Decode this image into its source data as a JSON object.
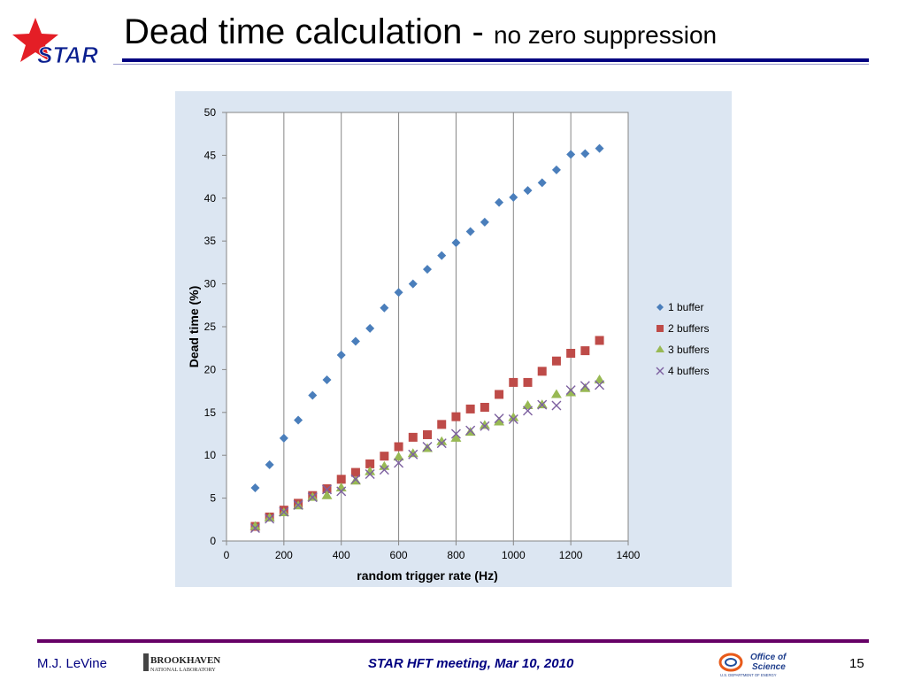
{
  "header": {
    "logo_text": "STAR",
    "title_main": "Dead time calculation - ",
    "title_sub": "no zero suppression"
  },
  "footer": {
    "author": "M.J. LeVine",
    "lab_logo_line1": "BROOKHAVEN",
    "lab_logo_line2": "NATIONAL LABORATORY",
    "meeting": "STAR HFT meeting, Mar 10, 2010",
    "doe_logo_line1": "Office of",
    "doe_logo_line2": "Science",
    "doe_logo_line3": "U.S. DEPARTMENT OF ENERGY",
    "page": "15"
  },
  "colors": {
    "chart_background": "#dce6f2",
    "series_1": "#4a7ebb",
    "series_2": "#be4b48",
    "series_3": "#98b954",
    "series_4": "#7d60a0",
    "title_rule": "#000080",
    "footer_rule": "#660066"
  },
  "chart_data": {
    "type": "scatter",
    "title": "",
    "xlabel": "random trigger rate (Hz)",
    "ylabel": "Dead time (%)",
    "xlim": [
      0,
      1400
    ],
    "ylim": [
      0,
      50
    ],
    "xticks": [
      0,
      200,
      400,
      600,
      800,
      1000,
      1200,
      1400
    ],
    "yticks": [
      0,
      5,
      10,
      15,
      20,
      25,
      30,
      35,
      40,
      45,
      50
    ],
    "grid": "vertical major",
    "legend_position": "right",
    "series": [
      {
        "name": "1 buffer",
        "marker": "diamond",
        "points": [
          [
            100,
            6.2
          ],
          [
            150,
            8.9
          ],
          [
            200,
            12.0
          ],
          [
            250,
            14.1
          ],
          [
            300,
            17.0
          ],
          [
            350,
            18.8
          ],
          [
            400,
            21.7
          ],
          [
            450,
            23.3
          ],
          [
            500,
            24.8
          ],
          [
            550,
            27.2
          ],
          [
            600,
            29.0
          ],
          [
            650,
            30.0
          ],
          [
            700,
            31.7
          ],
          [
            750,
            33.3
          ],
          [
            800,
            34.8
          ],
          [
            850,
            36.1
          ],
          [
            900,
            37.2
          ],
          [
            950,
            39.5
          ],
          [
            1000,
            40.1
          ],
          [
            1050,
            40.9
          ],
          [
            1100,
            41.8
          ],
          [
            1150,
            43.3
          ],
          [
            1200,
            45.1
          ],
          [
            1250,
            45.2
          ],
          [
            1300,
            45.8
          ]
        ]
      },
      {
        "name": "2 buffers",
        "marker": "square",
        "points": [
          [
            100,
            1.7
          ],
          [
            150,
            2.8
          ],
          [
            200,
            3.6
          ],
          [
            250,
            4.4
          ],
          [
            300,
            5.3
          ],
          [
            350,
            6.1
          ],
          [
            400,
            7.2
          ],
          [
            450,
            8.0
          ],
          [
            500,
            9.0
          ],
          [
            550,
            9.9
          ],
          [
            600,
            11.0
          ],
          [
            650,
            12.1
          ],
          [
            700,
            12.4
          ],
          [
            750,
            13.6
          ],
          [
            800,
            14.5
          ],
          [
            850,
            15.4
          ],
          [
            900,
            15.6
          ],
          [
            950,
            17.1
          ],
          [
            1000,
            18.5
          ],
          [
            1050,
            18.5
          ],
          [
            1100,
            19.8
          ],
          [
            1150,
            21.0
          ],
          [
            1200,
            21.9
          ],
          [
            1250,
            22.2
          ],
          [
            1300,
            23.4
          ]
        ]
      },
      {
        "name": "3 buffers",
        "marker": "triangle",
        "points": [
          [
            100,
            1.7
          ],
          [
            150,
            2.7
          ],
          [
            200,
            3.3
          ],
          [
            250,
            4.1
          ],
          [
            300,
            5.1
          ],
          [
            350,
            5.3
          ],
          [
            400,
            6.2
          ],
          [
            450,
            7.0
          ],
          [
            500,
            8.1
          ],
          [
            550,
            8.7
          ],
          [
            600,
            9.8
          ],
          [
            650,
            10.2
          ],
          [
            700,
            10.8
          ],
          [
            750,
            11.6
          ],
          [
            800,
            12.0
          ],
          [
            850,
            12.7
          ],
          [
            900,
            13.5
          ],
          [
            950,
            13.9
          ],
          [
            1000,
            14.4
          ],
          [
            1050,
            15.8
          ],
          [
            1100,
            15.9
          ],
          [
            1150,
            17.1
          ],
          [
            1200,
            17.3
          ],
          [
            1250,
            17.8
          ],
          [
            1300,
            18.8
          ]
        ]
      },
      {
        "name": "4 buffers",
        "marker": "x",
        "points": [
          [
            100,
            1.5
          ],
          [
            150,
            2.6
          ],
          [
            200,
            3.4
          ],
          [
            250,
            4.2
          ],
          [
            300,
            5.1
          ],
          [
            350,
            6.0
          ],
          [
            400,
            5.8
          ],
          [
            450,
            7.2
          ],
          [
            500,
            7.8
          ],
          [
            550,
            8.3
          ],
          [
            600,
            9.1
          ],
          [
            650,
            10.1
          ],
          [
            700,
            11.0
          ],
          [
            750,
            11.4
          ],
          [
            800,
            12.5
          ],
          [
            850,
            12.9
          ],
          [
            900,
            13.4
          ],
          [
            950,
            14.3
          ],
          [
            1000,
            14.2
          ],
          [
            1050,
            15.2
          ],
          [
            1100,
            15.9
          ],
          [
            1150,
            15.8
          ],
          [
            1200,
            17.6
          ],
          [
            1250,
            18.1
          ],
          [
            1300,
            18.2
          ]
        ]
      }
    ]
  }
}
